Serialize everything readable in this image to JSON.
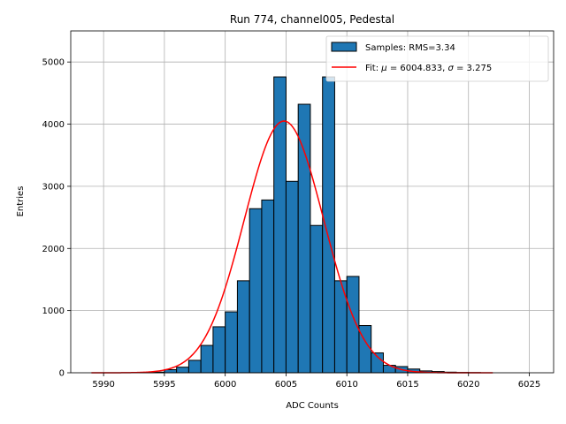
{
  "chart_data": {
    "type": "bar",
    "title": "Run 774, channel005, Pedestal",
    "xlabel": "ADC Counts",
    "ylabel": "Entries",
    "xlim": [
      5987.3,
      6027.0
    ],
    "ylim": [
      0,
      5500
    ],
    "xticks": [
      5990,
      5995,
      6000,
      6005,
      6010,
      6015,
      6020,
      6025
    ],
    "yticks": [
      0,
      1000,
      2000,
      3000,
      4000,
      5000
    ],
    "grid": true,
    "legend_position": "top-right",
    "bin_width": 1,
    "histogram": {
      "name": "Samples: RMS=3.34",
      "bin_left_edges": [
        5989,
        5990,
        5991,
        5992,
        5993,
        5994,
        5995,
        5996,
        5997,
        5998,
        5999,
        6000,
        6001,
        6002,
        6003,
        6004,
        6005,
        6006,
        6007,
        6008,
        6009,
        6010,
        6011,
        6012,
        6013,
        6014,
        6015,
        6016,
        6017,
        6018,
        6019,
        6020,
        6021
      ],
      "counts": [
        0,
        0,
        0,
        0,
        5,
        10,
        50,
        90,
        200,
        440,
        740,
        980,
        1480,
        2640,
        2780,
        4760,
        3080,
        4320,
        2370,
        4760,
        1480,
        1550,
        760,
        320,
        120,
        100,
        60,
        30,
        20,
        10,
        5,
        3,
        0
      ],
      "color": "#1f77b4"
    },
    "fit": {
      "name_prefix": "Fit: ",
      "mu_symbol": "μ",
      "mu_value": " = 6004.833, ",
      "sigma_symbol": "σ",
      "sigma_value": " = 3.275",
      "mu": 6004.833,
      "sigma": 3.275,
      "amplitude": 4050,
      "x_range": [
        5989,
        6022
      ],
      "color": "#ff0000"
    }
  }
}
